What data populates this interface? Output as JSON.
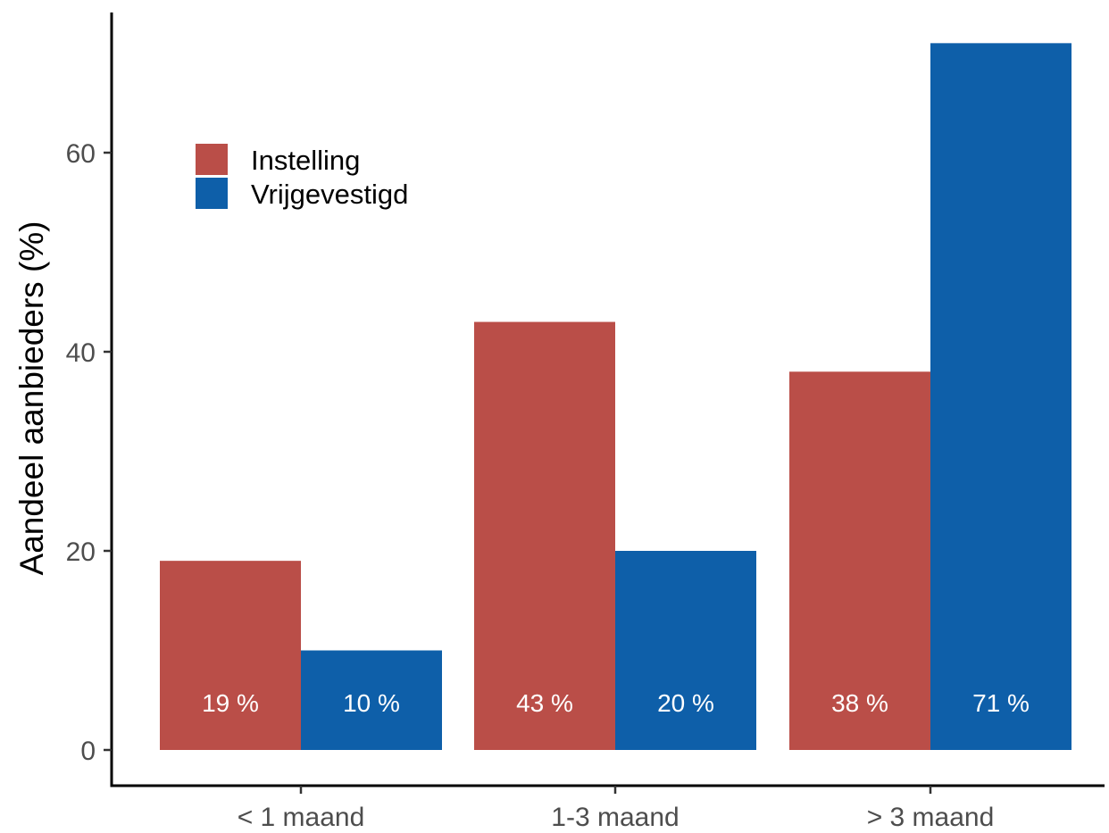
{
  "chart_data": {
    "type": "bar",
    "title": "",
    "xlabel": "",
    "ylabel": "Aandeel aanbieders (%)",
    "categories": [
      "< 1 maand",
      "1-3 maand",
      "> 3 maand"
    ],
    "series": [
      {
        "name": "Instelling",
        "color": "#BA4E48",
        "values": [
          19,
          43,
          38
        ],
        "labels": [
          "19 %",
          "43 %",
          "38 %"
        ]
      },
      {
        "name": "Vrijgevestigd",
        "color": "#0E5FA9",
        "values": [
          10,
          20,
          71
        ],
        "labels": [
          "10 %",
          "20 %",
          "71 %"
        ]
      }
    ],
    "y_ticks": [
      0,
      20,
      40,
      60
    ],
    "y_tick_labels": [
      "0",
      "20",
      "40",
      "60"
    ],
    "ylim": [
      0,
      71
    ],
    "grid": false,
    "legend_position": "top-left inside"
  }
}
